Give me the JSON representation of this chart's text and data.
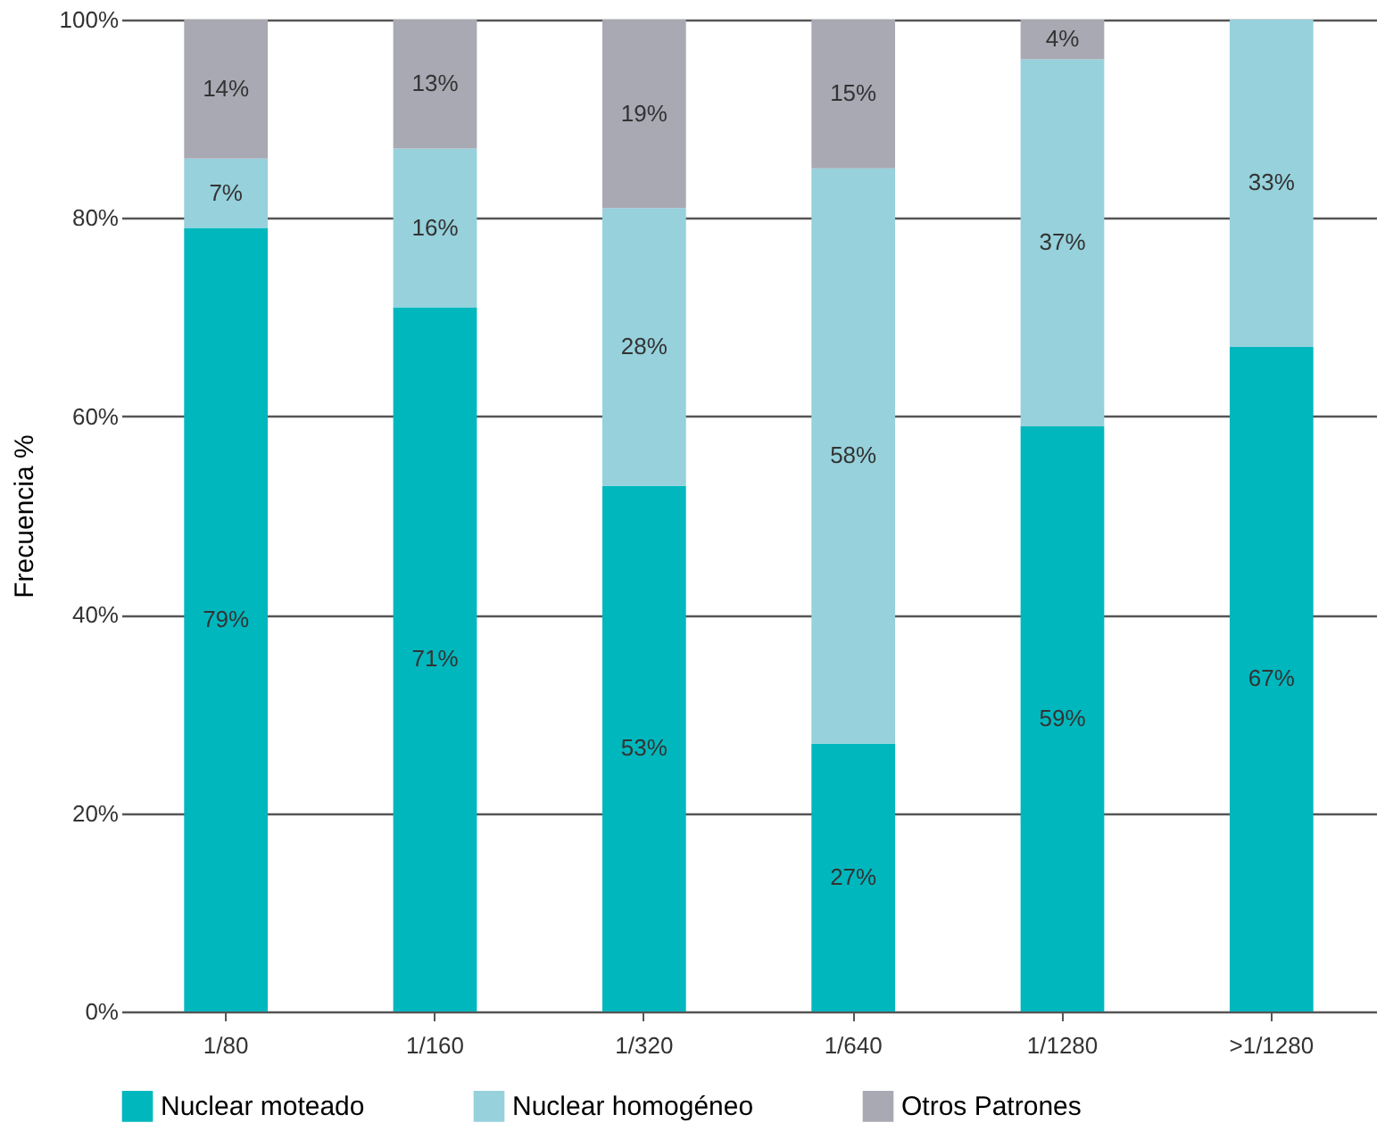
{
  "chart_data": {
    "type": "bar",
    "stacked": true,
    "ylabel": "Frecuencia %",
    "categories": [
      "1/80",
      "1/160",
      "1/320",
      "1/640",
      "1/1280",
      ">1/1280"
    ],
    "series": [
      {
        "name": "Nuclear moteado",
        "color": "#00b7be",
        "values": [
          79,
          71,
          53,
          27,
          59,
          67
        ],
        "value_labels": [
          "79%",
          "71%",
          "53%",
          "27%",
          "59%",
          "67%"
        ]
      },
      {
        "name": "Nuclear homogéneo",
        "color": "#96d1dc",
        "values": [
          7,
          16,
          28,
          58,
          37,
          33
        ],
        "value_labels": [
          "7%",
          "16%",
          "28%",
          "58%",
          "37%",
          "33%"
        ]
      },
      {
        "name": "Otros Patrones",
        "color": "#a8a9b3",
        "values": [
          14,
          13,
          19,
          15,
          4,
          null
        ],
        "value_labels": [
          "14%",
          "13%",
          "19%",
          "15%",
          "4%",
          null
        ]
      }
    ],
    "ylim": [
      0,
      100
    ],
    "yticks": [
      {
        "value": 0,
        "label": "0%"
      },
      {
        "value": 20,
        "label": "20%"
      },
      {
        "value": 40,
        "label": "40%"
      },
      {
        "value": 60,
        "label": "60%"
      },
      {
        "value": 80,
        "label": "80%"
      },
      {
        "value": 100,
        "label": "100%"
      }
    ],
    "grid": "y",
    "legend": "bottom"
  }
}
